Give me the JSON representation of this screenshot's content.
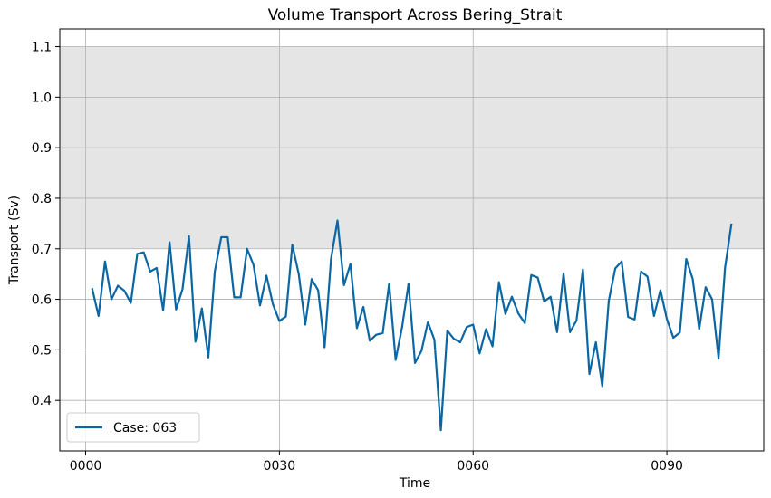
{
  "chart_data": {
    "type": "line",
    "title": "Volume Transport Across Bering_Strait",
    "xlabel": "Time",
    "ylabel": "Transport (Sv)",
    "xlim": [
      -4.0,
      105.0
    ],
    "ylim": [
      0.3,
      1.135
    ],
    "x_tick_values": [
      0,
      30,
      60,
      90
    ],
    "x_tick_labels": [
      "0000",
      "0030",
      "0060",
      "0090"
    ],
    "y_ticks": [
      0.4,
      0.5,
      0.6,
      0.7,
      0.8,
      0.9,
      1.0,
      1.1
    ],
    "y_tick_labels": [
      "0.4",
      "0.5",
      "0.6",
      "0.7",
      "0.8",
      "0.9",
      "1.0",
      "1.1"
    ],
    "grid": true,
    "shaded_band": {
      "ymin": 0.7,
      "ymax": 1.1,
      "color": "#e5e5e5"
    },
    "legend_position": "lower-left",
    "series": [
      {
        "name": "Case: 063",
        "color": "#0a67a3",
        "x": [
          1,
          2,
          3,
          4,
          5,
          6,
          7,
          8,
          9,
          10,
          11,
          12,
          13,
          14,
          15,
          16,
          17,
          18,
          19,
          20,
          21,
          22,
          23,
          24,
          25,
          26,
          27,
          28,
          29,
          30,
          31,
          32,
          33,
          34,
          35,
          36,
          37,
          38,
          39,
          40,
          41,
          42,
          43,
          44,
          45,
          46,
          47,
          48,
          49,
          50,
          51,
          52,
          53,
          54,
          55,
          56,
          57,
          58,
          59,
          60,
          61,
          62,
          63,
          64,
          65,
          66,
          67,
          68,
          69,
          70,
          71,
          72,
          73,
          74,
          75,
          76,
          77,
          78,
          79,
          80,
          81,
          82,
          83,
          84,
          85,
          86,
          87,
          88,
          89,
          90,
          91,
          92,
          93,
          94,
          95,
          96,
          97,
          98,
          99,
          100
        ],
        "y": [
          0.622,
          0.567,
          0.675,
          0.6,
          0.627,
          0.617,
          0.593,
          0.69,
          0.693,
          0.655,
          0.662,
          0.578,
          0.713,
          0.58,
          0.62,
          0.725,
          0.516,
          0.582,
          0.485,
          0.655,
          0.723,
          0.723,
          0.604,
          0.604,
          0.7,
          0.668,
          0.588,
          0.647,
          0.59,
          0.557,
          0.566,
          0.708,
          0.65,
          0.55,
          0.64,
          0.618,
          0.505,
          0.68,
          0.756,
          0.628,
          0.67,
          0.543,
          0.585,
          0.518,
          0.53,
          0.533,
          0.631,
          0.48,
          0.545,
          0.631,
          0.474,
          0.498,
          0.555,
          0.52,
          0.341,
          0.538,
          0.522,
          0.515,
          0.545,
          0.55,
          0.493,
          0.541,
          0.507,
          0.634,
          0.571,
          0.605,
          0.572,
          0.553,
          0.648,
          0.643,
          0.596,
          0.605,
          0.535,
          0.651,
          0.535,
          0.558,
          0.659,
          0.452,
          0.515,
          0.428,
          0.597,
          0.661,
          0.675,
          0.565,
          0.56,
          0.655,
          0.645,
          0.567,
          0.618,
          0.561,
          0.524,
          0.534,
          0.68,
          0.64,
          0.541,
          0.624,
          0.6,
          0.483,
          0.662,
          0.75
        ]
      }
    ]
  }
}
